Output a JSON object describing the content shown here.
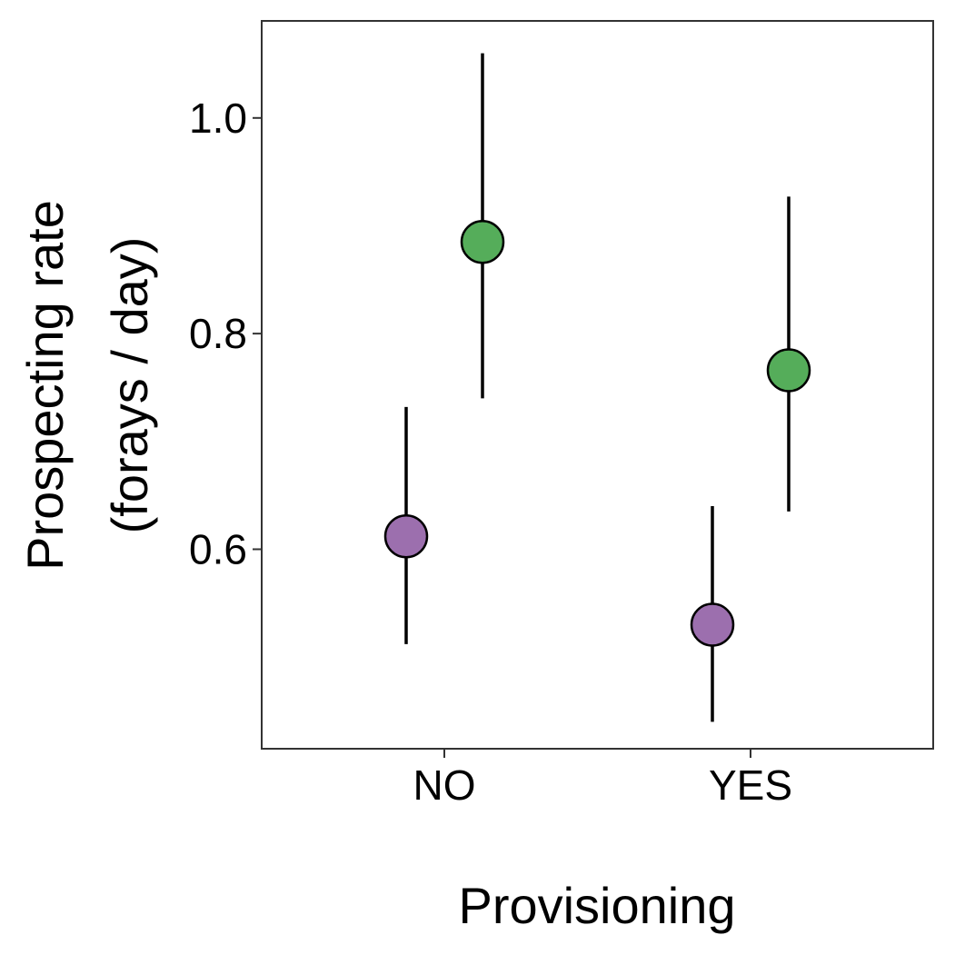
{
  "chart_data": {
    "type": "scatter",
    "subtype": "point-with-error-bars",
    "title": "",
    "xlabel": "Provisioning",
    "ylabel_lines": [
      "Prospecting rate",
      "(forays / day)"
    ],
    "categories": [
      "NO",
      "YES"
    ],
    "y_ticks": [
      {
        "value": 0.6,
        "label": "0.6"
      },
      {
        "value": 0.8,
        "label": "0.8"
      },
      {
        "value": 1.0,
        "label": "1.0"
      }
    ],
    "ylim": [
      0.415,
      1.09
    ],
    "grid": false,
    "legend": "none",
    "series": [
      {
        "color": "#9c6fae",
        "values": [
          0.612,
          0.53
        ],
        "lower": [
          0.512,
          0.44
        ],
        "upper": [
          0.732,
          0.64
        ]
      },
      {
        "color": "#55ad5a",
        "values": [
          0.885,
          0.766
        ],
        "lower": [
          0.74,
          0.635
        ],
        "upper": [
          1.06,
          0.927
        ]
      }
    ]
  }
}
